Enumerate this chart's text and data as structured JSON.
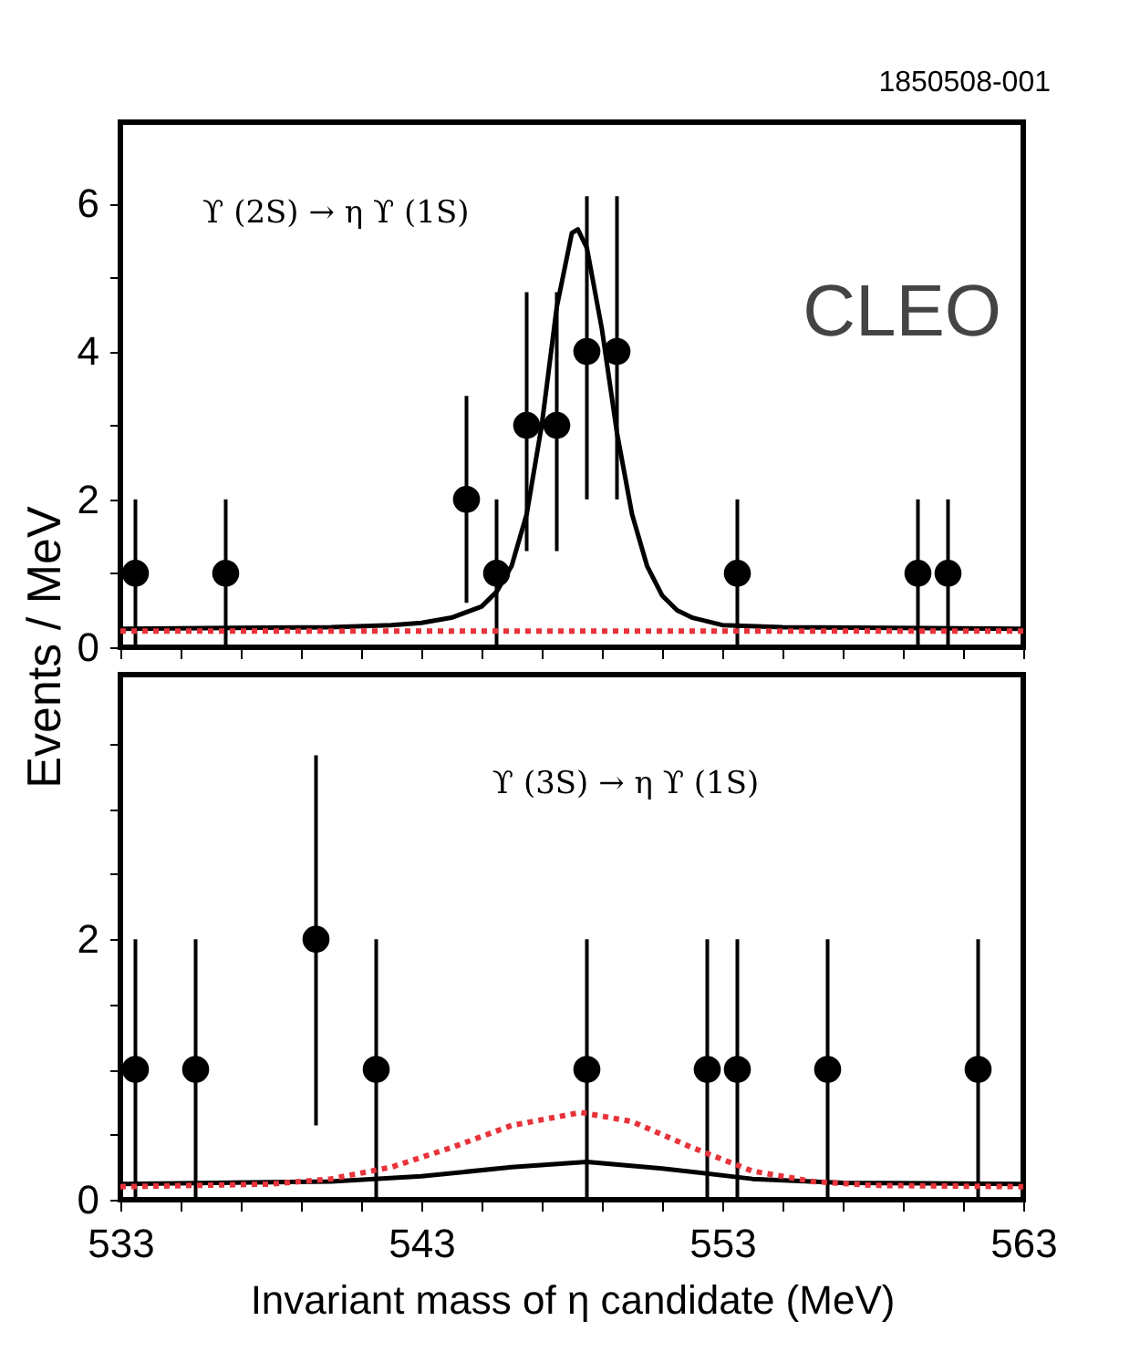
{
  "chart_data": [
    {
      "type": "scatter",
      "ylabel": "Events / MeV",
      "annotations": [
        "1850508-001",
        "ϒ (2S) → η ϒ (1S)",
        "CLEO"
      ],
      "xlim": [
        533,
        563
      ],
      "xticks": [
        533,
        {
          "value": 535,
          "label": null
        },
        {
          "value": 537,
          "label": null
        },
        {
          "value": 539,
          "label": null
        },
        {
          "value": 541,
          "label": null
        },
        543,
        {
          "value": 545,
          "label": null
        },
        {
          "value": 547,
          "label": null
        },
        {
          "value": 549,
          "label": null
        },
        {
          "value": 551,
          "label": null
        },
        553,
        {
          "value": 555,
          "label": null
        },
        {
          "value": 557,
          "label": null
        },
        {
          "value": 559,
          "label": null
        },
        {
          "value": 561,
          "label": null
        },
        563
      ],
      "ylim": [
        0,
        7.1
      ],
      "yticks": [
        0,
        {
          "value": 1,
          "label": null
        },
        2,
        {
          "value": 3,
          "label": null
        },
        4,
        {
          "value": 5,
          "label": null
        },
        6
      ],
      "tick_labels": "y",
      "grid": false,
      "series": [
        {
          "marker": "circle",
          "color": "#000000",
          "x": [
            533.5,
            536.5,
            544.5,
            545.5,
            546.5,
            547.5,
            548.5,
            549.5,
            553.5,
            559.5,
            560.5
          ],
          "values": [
            1,
            1,
            2,
            1,
            3,
            3,
            4,
            4,
            1,
            1,
            1
          ],
          "errors": [
            [
              0,
              2
            ],
            [
              0,
              2
            ],
            [
              0.6,
              3.4
            ],
            [
              0,
              2
            ],
            [
              1.3,
              4.8
            ],
            [
              1.3,
              4.8
            ],
            [
              2,
              6.1
            ],
            [
              2,
              6.1
            ],
            [
              0,
              2
            ],
            [
              0,
              2
            ],
            [
              0,
              2
            ]
          ]
        },
        {
          "type": "line",
          "color": "#000000",
          "line_style": "solid",
          "x": [
            533,
            540,
            542,
            543,
            544,
            545,
            545.5,
            546,
            546.5,
            547,
            547.5,
            548,
            548.2,
            548.5,
            549,
            549.5,
            550,
            550.5,
            551,
            551.5,
            552,
            553,
            555,
            563
          ],
          "values": [
            0.25,
            0.27,
            0.3,
            0.33,
            0.4,
            0.55,
            0.75,
            1.1,
            1.8,
            3.0,
            4.6,
            5.6,
            5.65,
            5.4,
            4.3,
            2.9,
            1.8,
            1.1,
            0.7,
            0.5,
            0.4,
            0.3,
            0.27,
            0.25
          ]
        },
        {
          "type": "line",
          "color": "#e8333a",
          "line_style": "dotted",
          "x": [
            533,
            563
          ],
          "values": [
            0.22,
            0.22
          ]
        }
      ]
    },
    {
      "type": "scatter",
      "xlabel": "Invariant mass of η candidate (MeV)",
      "annotations": [
        "ϒ (3S) → η ϒ (1S)"
      ],
      "xlim": [
        533,
        563
      ],
      "xticks": [
        533,
        {
          "value": 535,
          "label": null
        },
        {
          "value": 537,
          "label": null
        },
        {
          "value": 539,
          "label": null
        },
        {
          "value": 541,
          "label": null
        },
        543,
        {
          "value": 545,
          "label": null
        },
        {
          "value": 547,
          "label": null
        },
        {
          "value": 549,
          "label": null
        },
        {
          "value": 551,
          "label": null
        },
        553,
        {
          "value": 555,
          "label": null
        },
        {
          "value": 557,
          "label": null
        },
        {
          "value": 559,
          "label": null
        },
        {
          "value": 561,
          "label": null
        },
        563
      ],
      "ylim": [
        0,
        4.03
      ],
      "yticks": [
        0,
        {
          "value": 0.5,
          "label": null
        },
        {
          "value": 1,
          "label": null
        },
        {
          "value": 1.5,
          "label": null
        },
        2,
        {
          "value": 2.5,
          "label": null
        },
        {
          "value": 3,
          "label": null
        },
        {
          "value": 3.5,
          "label": null
        }
      ],
      "grid": false,
      "series": [
        {
          "marker": "circle",
          "color": "#000000",
          "x": [
            533.5,
            535.5,
            539.5,
            541.5,
            548.5,
            552.5,
            553.5,
            556.5,
            561.5
          ],
          "values": [
            1,
            1,
            2,
            1,
            1,
            1,
            1,
            1,
            1
          ],
          "errors": [
            [
              0,
              2
            ],
            [
              0,
              2
            ],
            [
              0.57,
              3.41
            ],
            [
              0,
              2
            ],
            [
              0,
              2
            ],
            [
              0,
              2
            ],
            [
              0,
              2
            ],
            [
              0,
              2
            ],
            [
              0,
              2
            ]
          ]
        },
        {
          "type": "line",
          "color": "#000000",
          "line_style": "solid",
          "x": [
            533,
            540,
            543,
            546,
            548.5,
            551,
            554,
            557,
            563
          ],
          "values": [
            0.12,
            0.14,
            0.18,
            0.25,
            0.29,
            0.24,
            0.16,
            0.13,
            0.12
          ]
        },
        {
          "type": "line",
          "color": "#e8333a",
          "line_style": "dotted",
          "x": [
            533,
            538,
            540,
            542,
            544,
            546,
            548.3,
            550,
            552,
            554,
            556,
            558,
            563
          ],
          "values": [
            0.1,
            0.12,
            0.16,
            0.25,
            0.4,
            0.57,
            0.67,
            0.6,
            0.4,
            0.22,
            0.14,
            0.11,
            0.1
          ]
        }
      ]
    }
  ]
}
